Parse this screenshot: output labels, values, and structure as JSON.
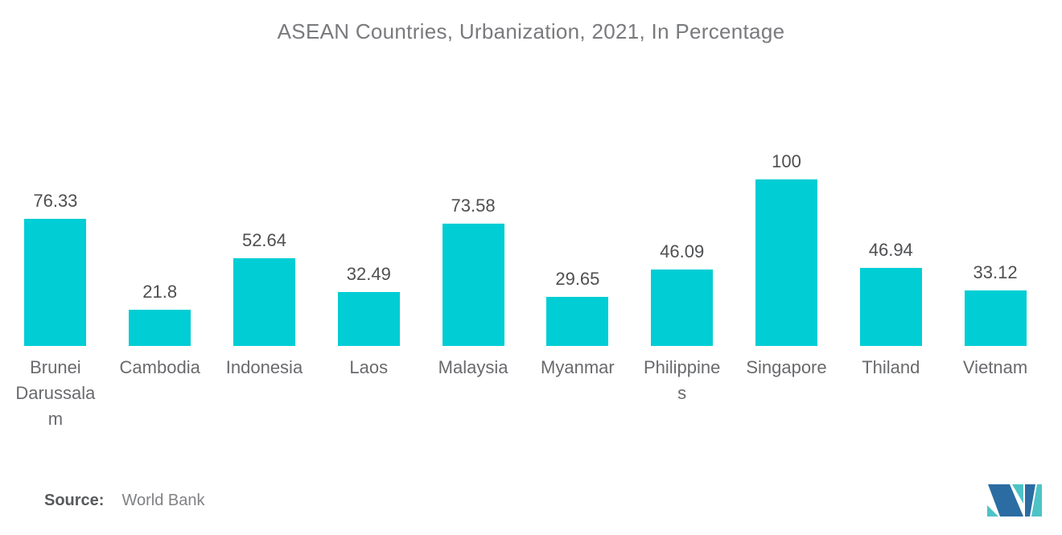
{
  "chart_data": {
    "type": "bar",
    "title": "ASEAN Countries, Urbanization, 2021, In Percentage",
    "categories": [
      "Brunei Darussalam",
      "Cambodia",
      "Indonesia",
      "Laos",
      "Malaysia",
      "Myanmar",
      "Philippines",
      "Singapore",
      "Thiland",
      "Vietnam"
    ],
    "values": [
      76.33,
      21.8,
      52.64,
      32.49,
      73.58,
      29.65,
      46.09,
      100,
      46.94,
      33.12
    ],
    "value_labels": [
      "76.33",
      "21.8",
      "52.64",
      "32.49",
      "73.58",
      "29.65",
      "46.09",
      "100",
      "46.94",
      "33.12"
    ],
    "xlabel": "",
    "ylabel": "",
    "ylim": [
      0,
      100
    ],
    "grid": false,
    "legend": false,
    "bar_color": "#00CDD4"
  },
  "source": {
    "label": "Source:",
    "value": "World Bank"
  },
  "logo": {
    "name": "mordor-intelligence-logo",
    "blue": "#2B6CA3",
    "teal": "#4EC3C6"
  }
}
